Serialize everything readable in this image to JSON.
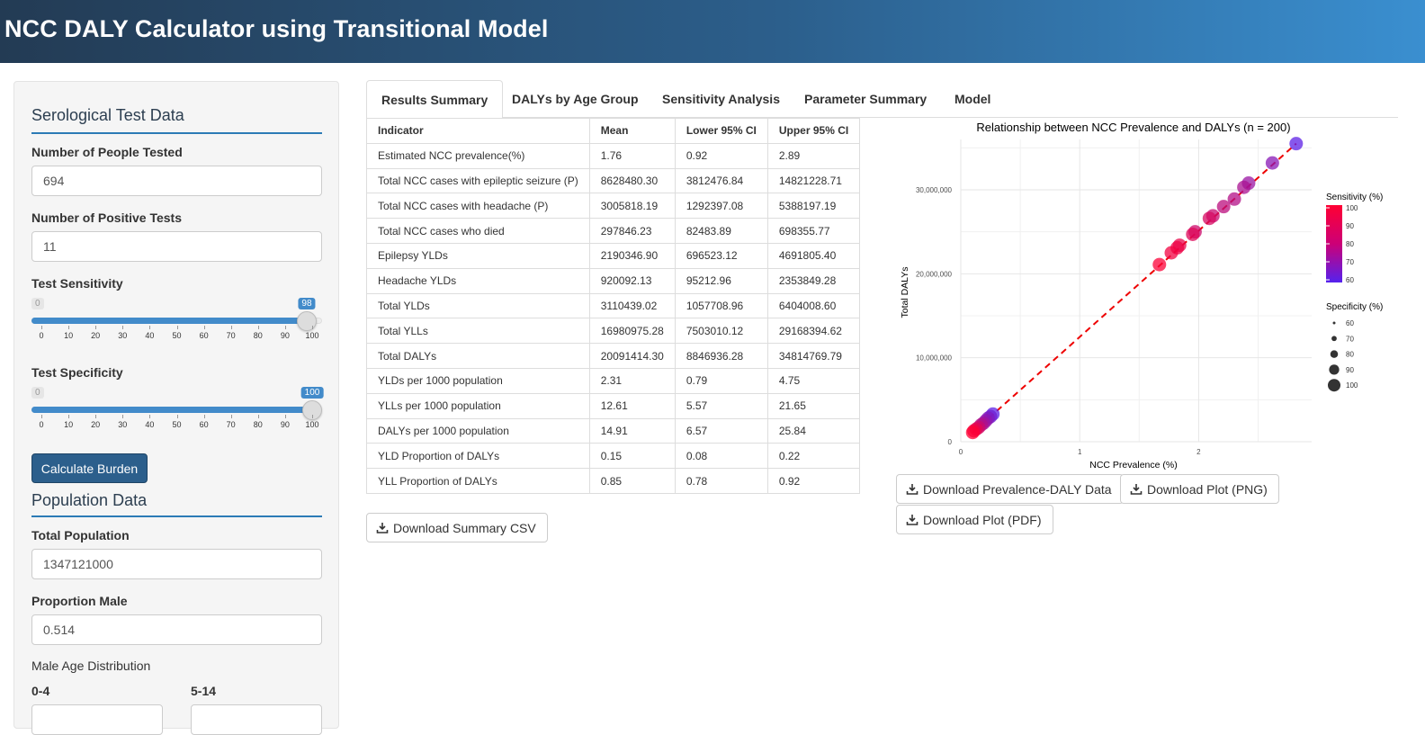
{
  "app": {
    "title": "NCC DALY Calculator using Transitional Model"
  },
  "sidebar": {
    "serology_title": "Serological Test Data",
    "people_tested_label": "Number of People Tested",
    "people_tested_value": "694",
    "positive_tests_label": "Number of Positive Tests",
    "positive_tests_value": "11",
    "sensitivity_label": "Test Sensitivity",
    "sensitivity": {
      "min_label": "0",
      "value_label": "98",
      "value": 98,
      "max": 100
    },
    "specificity_label": "Test Specificity",
    "specificity": {
      "min_label": "0",
      "value_label": "100",
      "value": 100,
      "max": 100
    },
    "slider_ticks": [
      "0",
      "10",
      "20",
      "30",
      "40",
      "50",
      "60",
      "70",
      "80",
      "90",
      "100"
    ],
    "calculate_label": "Calculate Burden",
    "population_title": "Population Data",
    "total_population_label": "Total Population",
    "total_population_value": "1347121000",
    "proportion_male_label": "Proportion Male",
    "proportion_male_value": "0.514",
    "male_age_label": "Male Age Distribution",
    "age_0_4_label": "0-4",
    "age_5_14_label": "5-14"
  },
  "tabs": [
    "Results Summary",
    "DALYs by Age Group",
    "Sensitivity Analysis",
    "Parameter Summary",
    "Model"
  ],
  "table": {
    "headers": [
      "Indicator",
      "Mean",
      "Lower 95% CI",
      "Upper 95% CI"
    ],
    "rows": [
      [
        "Estimated NCC prevalence(%)",
        "1.76",
        "0.92",
        "2.89"
      ],
      [
        "Total NCC cases with epileptic seizure (P)",
        "8628480.30",
        "3812476.84",
        "14821228.71"
      ],
      [
        "Total NCC cases with headache (P)",
        "3005818.19",
        "1292397.08",
        "5388197.19"
      ],
      [
        "Total NCC cases who died",
        "297846.23",
        "82483.89",
        "698355.77"
      ],
      [
        "Epilepsy YLDs",
        "2190346.90",
        "696523.12",
        "4691805.40"
      ],
      [
        "Headache YLDs",
        "920092.13",
        "95212.96",
        "2353849.28"
      ],
      [
        "Total YLDs",
        "3110439.02",
        "1057708.96",
        "6404008.60"
      ],
      [
        "Total YLLs",
        "16980975.28",
        "7503010.12",
        "29168394.62"
      ],
      [
        "Total DALYs",
        "20091414.30",
        "8846936.28",
        "34814769.79"
      ],
      [
        "YLDs per 1000 population",
        "2.31",
        "0.79",
        "4.75"
      ],
      [
        "YLLs per 1000 population",
        "12.61",
        "5.57",
        "21.65"
      ],
      [
        "DALYs per 1000 population",
        "14.91",
        "6.57",
        "25.84"
      ],
      [
        "YLD Proportion of DALYs",
        "0.15",
        "0.08",
        "0.22"
      ],
      [
        "YLL Proportion of DALYs",
        "0.85",
        "0.78",
        "0.92"
      ]
    ]
  },
  "buttons": {
    "download_summary": "Download Summary CSV",
    "download_prev_daly": "Download Prevalence-DALY Data",
    "download_png": "Download Plot (PNG)",
    "download_pdf": "Download Plot (PDF)"
  },
  "chart_data": {
    "type": "scatter",
    "title": "Relationship between NCC Prevalence and DALYs (n = 200)",
    "xlabel": "NCC Prevalence (%)",
    "ylabel": "Total DALYs",
    "xlim": [
      0,
      2.95
    ],
    "ylim": [
      0,
      36000000
    ],
    "x_ticks": [
      0,
      1,
      2
    ],
    "x_tick_labels": [
      "0",
      "1",
      "2"
    ],
    "y_ticks": [
      0,
      10000000,
      20000000,
      30000000
    ],
    "y_tick_labels": [
      "0",
      "10,000,000",
      "20,000,000",
      "30,000,000"
    ],
    "grid": true,
    "legend_position": "right",
    "color_legend": {
      "title": "Sensitivity (%)",
      "labels": [
        "100",
        "90",
        "80",
        "70",
        "60"
      ],
      "high_color": "#ff0033",
      "low_color": "#5522ee"
    },
    "size_legend": {
      "title": "Specificity (%)",
      "labels": [
        "60",
        "70",
        "80",
        "90",
        "100"
      ]
    },
    "trend_line": {
      "color": "#ee0000",
      "style": "dashed",
      "from": [
        0.1,
        1100000
      ],
      "to": [
        2.82,
        35500000
      ]
    },
    "points": [
      {
        "x": 2.82,
        "y": 35500000,
        "sens": 62,
        "spec": 100
      },
      {
        "x": 2.62,
        "y": 33200000,
        "sens": 72,
        "spec": 100
      },
      {
        "x": 2.42,
        "y": 30800000,
        "sens": 76,
        "spec": 100
      },
      {
        "x": 2.38,
        "y": 30300000,
        "sens": 80,
        "spec": 100
      },
      {
        "x": 2.3,
        "y": 28900000,
        "sens": 82,
        "spec": 100
      },
      {
        "x": 2.21,
        "y": 28000000,
        "sens": 84,
        "spec": 100
      },
      {
        "x": 2.12,
        "y": 26900000,
        "sens": 87,
        "spec": 100
      },
      {
        "x": 2.09,
        "y": 26600000,
        "sens": 90,
        "spec": 100
      },
      {
        "x": 1.97,
        "y": 25000000,
        "sens": 88,
        "spec": 100
      },
      {
        "x": 1.95,
        "y": 24700000,
        "sens": 92,
        "spec": 100
      },
      {
        "x": 1.84,
        "y": 23400000,
        "sens": 95,
        "spec": 100
      },
      {
        "x": 1.82,
        "y": 23100000,
        "sens": 96,
        "spec": 100
      },
      {
        "x": 1.77,
        "y": 22500000,
        "sens": 97,
        "spec": 100
      },
      {
        "x": 1.67,
        "y": 21100000,
        "sens": 99,
        "spec": 100
      },
      {
        "x": 0.27,
        "y": 3300000,
        "sens": 62,
        "spec": 100
      },
      {
        "x": 0.25,
        "y": 3000000,
        "sens": 66,
        "spec": 100
      },
      {
        "x": 0.23,
        "y": 2800000,
        "sens": 70,
        "spec": 100
      },
      {
        "x": 0.21,
        "y": 2500000,
        "sens": 74,
        "spec": 100
      },
      {
        "x": 0.19,
        "y": 2200000,
        "sens": 78,
        "spec": 100
      },
      {
        "x": 0.17,
        "y": 2000000,
        "sens": 82,
        "spec": 100
      },
      {
        "x": 0.15,
        "y": 1700000,
        "sens": 88,
        "spec": 100
      },
      {
        "x": 0.13,
        "y": 1500000,
        "sens": 93,
        "spec": 100
      },
      {
        "x": 0.11,
        "y": 1300000,
        "sens": 97,
        "spec": 100
      },
      {
        "x": 0.1,
        "y": 1100000,
        "sens": 100,
        "spec": 100
      }
    ]
  }
}
